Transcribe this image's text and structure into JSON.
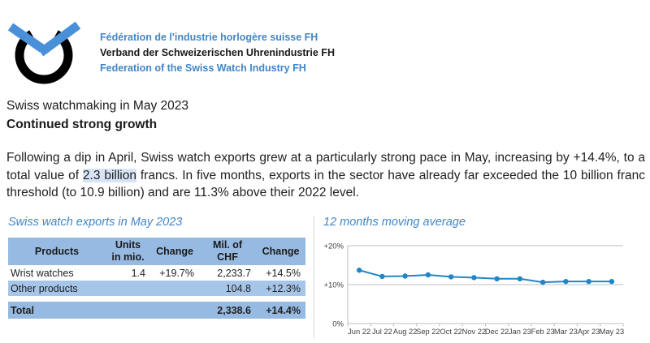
{
  "colors": {
    "brand_blue": "#4186C6",
    "logo_hands": "#4A90D9",
    "table_header_bg": "#97BAE2",
    "row_alt_bg": "#A6C6E9",
    "highlight_bg": "#D6E4F6",
    "chart_line": "#2186C7",
    "grid_gray": "#BFBFBF",
    "text_dark": "#1F1F1F"
  },
  "header": {
    "org_lines": [
      {
        "text": "Fédération de l'industrie horlogère suisse FH"
      },
      {
        "text": "Verband der Schweizerischen Uhrenindustrie FH"
      },
      {
        "text": "Federation of the Swiss Watch Industry FH"
      }
    ]
  },
  "title": {
    "line1": "Swiss watchmaking in May 2023",
    "line2": "Continued strong growth"
  },
  "paragraph": {
    "before_highlight": "Following a dip in April, Swiss watch exports grew at a particularly strong pace in May, increasing by +14.4%, to a total value of ",
    "highlight": "2.3 billion",
    "after_highlight": " francs. In five months, exports in the sector have already far exceeded the 10 billion franc threshold (to 10.9 billion) and are 11.3% above their 2022 level."
  },
  "table_section": {
    "title": "Swiss watch exports in May 2023",
    "table": {
      "headers": {
        "products": "Products",
        "units_l1": "Units",
        "units_l2": "in mio.",
        "change1": "Change",
        "chf_l1": "Mil. of",
        "chf_l2": "CHF",
        "change2": "Change"
      },
      "rows": {
        "wrist": {
          "product": "Wrist watches",
          "units": "1.4",
          "change_units": "+19.7%",
          "chf": "2,233.7",
          "change_chf": "+14.5%"
        },
        "other": {
          "product": "Other products",
          "units": "",
          "change_units": "",
          "chf": "104.8",
          "change_chf": "+12.3%"
        },
        "total": {
          "product": "Total",
          "units": "",
          "change_units": "",
          "chf": "2,338.6",
          "change_chf": "+14.4%"
        }
      }
    }
  },
  "chart_section": {
    "title": "12 months moving average"
  },
  "chart_data": {
    "type": "line",
    "title": "12 months moving average",
    "categories": [
      "Jun 22",
      "Jul 22",
      "Aug 22",
      "Sep 22",
      "Oct 22",
      "Nov 22",
      "Dec 22",
      "Jan 23",
      "Feb 23",
      "Mar 23",
      "Apr 23",
      "May 23"
    ],
    "values": [
      13.7,
      12.1,
      12.2,
      12.5,
      12.0,
      11.8,
      11.5,
      11.5,
      10.6,
      10.8,
      10.8,
      10.8
    ],
    "ylim": [
      0,
      20
    ],
    "yticks": [
      0,
      10,
      20
    ],
    "ytick_labels": [
      "0%",
      "+10%",
      "+20%"
    ],
    "xlabel": "",
    "ylabel": "",
    "grid": true,
    "legend": "none",
    "line_color": "#2186C7",
    "grid_color": "#BFBFBF"
  }
}
